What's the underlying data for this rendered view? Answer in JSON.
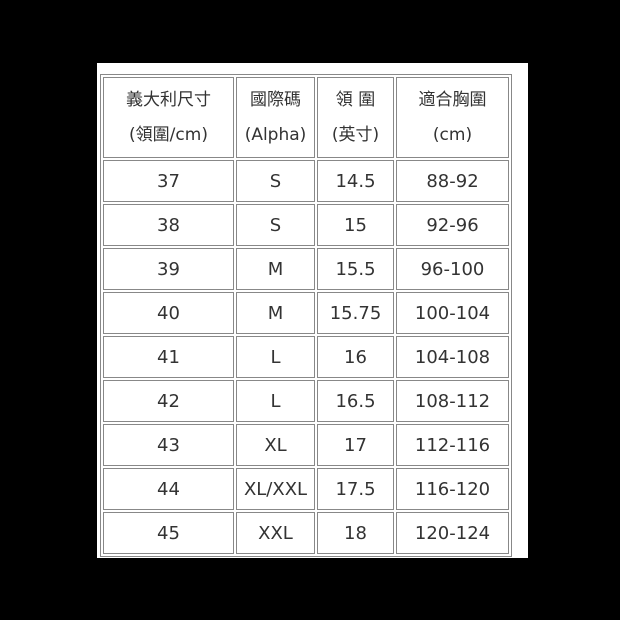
{
  "headers": [
    [
      "義大利尺寸",
      "(領圍/cm)"
    ],
    [
      "國際碼",
      "(Alpha)"
    ],
    [
      "領 圍",
      "(英寸)"
    ],
    [
      "適合胸圍",
      "(cm)"
    ]
  ],
  "rows": [
    [
      "37",
      "S",
      "14.5",
      "88-92"
    ],
    [
      "38",
      "S",
      "15",
      "92-96"
    ],
    [
      "39",
      "M",
      "15.5",
      "96-100"
    ],
    [
      "40",
      "M",
      "15.75",
      "100-104"
    ],
    [
      "41",
      "L",
      "16",
      "104-108"
    ],
    [
      "42",
      "L",
      "16.5",
      "108-112"
    ],
    [
      "43",
      "XL",
      "17",
      "112-116"
    ],
    [
      "44",
      "XL/XXL",
      "17.5",
      "116-120"
    ],
    [
      "45",
      "XXL",
      "18",
      "120-124"
    ]
  ]
}
